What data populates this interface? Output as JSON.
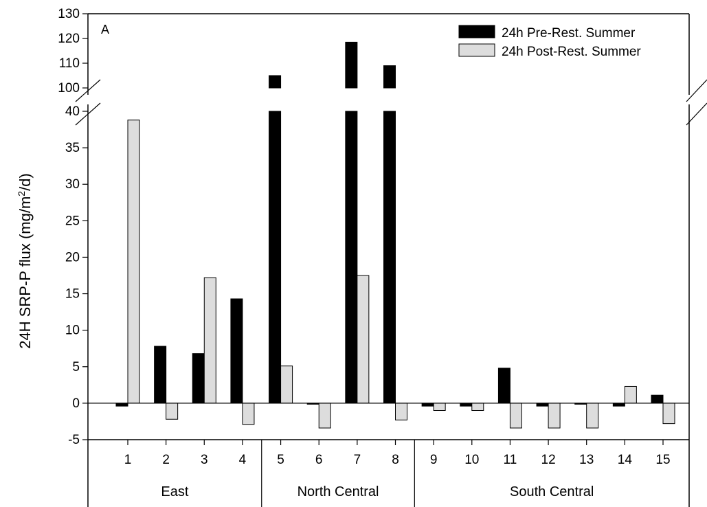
{
  "chart_data": {
    "type": "bar",
    "panel_label": "A",
    "ylabel": "24H SRP-P flux (mg/m2/d)",
    "ylabel_main": "24H SRP-P flux (mg/m",
    "ylabel_sup": "2",
    "ylabel_tail": "/d)",
    "categories": [
      "1",
      "2",
      "3",
      "4",
      "5",
      "6",
      "7",
      "8",
      "9",
      "10",
      "11",
      "12",
      "13",
      "14",
      "15"
    ],
    "groups": [
      {
        "label": "East",
        "categories": [
          "1",
          "2",
          "3",
          "4"
        ]
      },
      {
        "label": "North Central",
        "categories": [
          "5",
          "6",
          "7",
          "8"
        ]
      },
      {
        "label": "South Central",
        "categories": [
          "9",
          "10",
          "11",
          "12",
          "13",
          "14",
          "15"
        ]
      }
    ],
    "series": [
      {
        "name": "24h Pre-Rest. Summer",
        "color": "#000000",
        "values": [
          -0.4,
          7.8,
          6.8,
          14.3,
          105,
          -0.1,
          118.5,
          109,
          -0.4,
          -0.4,
          4.8,
          -0.4,
          -0.1,
          -0.4,
          1.1
        ]
      },
      {
        "name": "24h Post-Rest. Summer",
        "color": "#dddddd",
        "values": [
          38.8,
          -2.2,
          17.2,
          -2.9,
          5.1,
          -3.4,
          17.5,
          -2.3,
          -1.0,
          -1.0,
          -3.4,
          -3.4,
          -3.4,
          2.3,
          -2.8
        ]
      }
    ],
    "y_axis_lower": {
      "range": [
        -5,
        40
      ],
      "ticks": [
        "-5",
        "0",
        "5",
        "10",
        "15",
        "20",
        "25",
        "30",
        "35",
        "40"
      ]
    },
    "y_axis_upper": {
      "range": [
        100,
        130
      ],
      "ticks": [
        "100",
        "110",
        "120",
        "130"
      ]
    },
    "axis_break": true,
    "legend_position": "top-right",
    "grid": false
  }
}
